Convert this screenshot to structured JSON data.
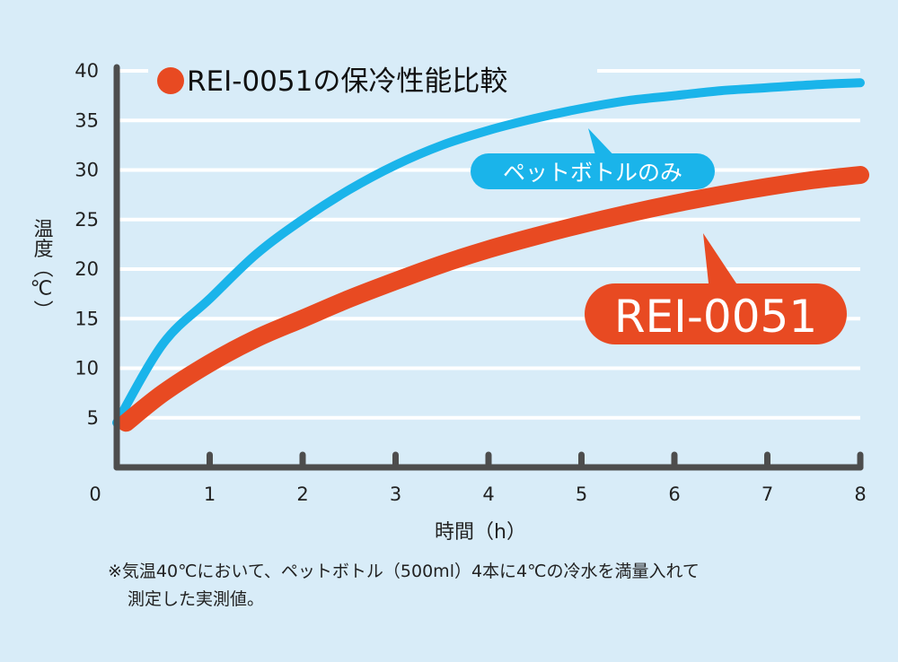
{
  "chart_data": {
    "type": "line",
    "title": "REI-0051の保冷性能比較",
    "xlabel": "時間（h）",
    "ylabel": "温度（℃）",
    "x_ticks": [
      "0",
      "1",
      "2",
      "3",
      "4",
      "5",
      "6",
      "7",
      "8"
    ],
    "y_ticks": [
      "5",
      "10",
      "15",
      "20",
      "25",
      "30",
      "35",
      "40"
    ],
    "xlim": [
      0,
      8
    ],
    "ylim": [
      0,
      40
    ],
    "grid": true,
    "series": [
      {
        "name": "ペットボトルのみ",
        "color": "#1ab4ea",
        "x": [
          0,
          0.5,
          1,
          1.5,
          2,
          2.5,
          3,
          3.5,
          4,
          4.5,
          5,
          5.5,
          6,
          6.5,
          7,
          7.5,
          8
        ],
        "y": [
          4.5,
          12.5,
          17,
          21.5,
          25,
          28,
          30.5,
          32.5,
          34,
          35.2,
          36.2,
          37,
          37.5,
          38,
          38.3,
          38.6,
          38.8
        ]
      },
      {
        "name": "REI-0051",
        "color": "#e84a22",
        "x": [
          0.1,
          0.5,
          1,
          1.5,
          2,
          2.5,
          3,
          3.5,
          4,
          4.5,
          5,
          5.5,
          6,
          6.5,
          7,
          7.5,
          8
        ],
        "y": [
          4.5,
          7.5,
          10.5,
          13,
          15,
          17,
          18.8,
          20.5,
          22,
          23.3,
          24.5,
          25.6,
          26.6,
          27.5,
          28.3,
          29,
          29.5
        ]
      }
    ],
    "title_marker_color": "#e84a22"
  },
  "note": {
    "line1": "※気温40℃において、ペットボトル（500ml）4本に4℃の冷水を満量入れて",
    "line2": "測定した実測値。"
  }
}
